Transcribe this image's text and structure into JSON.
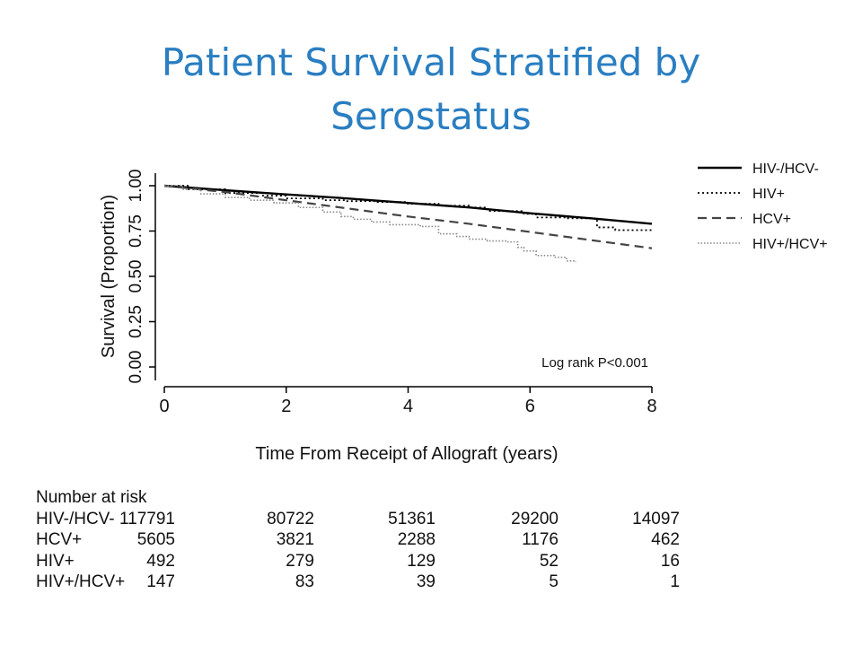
{
  "title": "Patient Survival Stratified by Serostatus",
  "chart_data": {
    "type": "line",
    "xlabel": "Time From Receipt of Allograft (years)",
    "ylabel": "Survival (Proportion)",
    "xlim": [
      0,
      8
    ],
    "ylim": [
      0,
      1
    ],
    "x_ticks": [
      "0",
      "2",
      "4",
      "6",
      "8"
    ],
    "y_ticks": [
      "0.00",
      "0.25",
      "0.50",
      "0.75",
      "1.00"
    ],
    "annotation": "Log rank P<0.001",
    "legend_position": "right",
    "series": [
      {
        "name": "HIV-/HCV-",
        "style": "solid",
        "color": "#000000",
        "x": [
          0,
          1,
          2,
          3,
          4,
          5,
          6,
          7,
          8
        ],
        "y": [
          1.0,
          0.975,
          0.952,
          0.93,
          0.905,
          0.88,
          0.848,
          0.82,
          0.79
        ]
      },
      {
        "name": "HIV+",
        "style": "dotted",
        "color": "#000000",
        "x": [
          0,
          0.4,
          1,
          1.6,
          2,
          2.6,
          3,
          3.5,
          4,
          4.5,
          5,
          5.3,
          5.9,
          6.1,
          6.6,
          7.0,
          7.1,
          7.4,
          8.0
        ],
        "y": [
          1.0,
          0.98,
          0.96,
          0.945,
          0.93,
          0.92,
          0.915,
          0.91,
          0.9,
          0.89,
          0.88,
          0.86,
          0.845,
          0.825,
          0.82,
          0.82,
          0.77,
          0.755,
          0.755
        ]
      },
      {
        "name": "HCV+",
        "style": "dashed",
        "color": "#333333",
        "x": [
          0,
          1,
          2,
          3,
          4,
          5,
          6,
          7,
          8
        ],
        "y": [
          1.0,
          0.965,
          0.92,
          0.875,
          0.83,
          0.79,
          0.745,
          0.7,
          0.655
        ]
      },
      {
        "name": "HIV+/HCV+",
        "style": "dotted-gray",
        "color": "#888888",
        "x": [
          0,
          0.3,
          0.6,
          1.0,
          1.4,
          1.8,
          2.2,
          2.6,
          2.9,
          3.1,
          3.4,
          3.7,
          4.2,
          4.5,
          4.8,
          5.0,
          5.3,
          5.6,
          5.8,
          5.9,
          6.1,
          6.4,
          6.6,
          6.75
        ],
        "y": [
          1.0,
          0.98,
          0.955,
          0.935,
          0.92,
          0.905,
          0.88,
          0.855,
          0.83,
          0.815,
          0.8,
          0.785,
          0.775,
          0.735,
          0.72,
          0.705,
          0.695,
          0.69,
          0.66,
          0.64,
          0.615,
          0.605,
          0.585,
          0.58
        ]
      }
    ]
  },
  "risk_table": {
    "title": "Number at risk",
    "rows": [
      {
        "label": "HIV-/HCV-",
        "values": [
          "117791",
          "80722",
          "51361",
          "29200",
          "14097"
        ]
      },
      {
        "label": "HCV+",
        "values": [
          "5605",
          "3821",
          "2288",
          "1176",
          "462"
        ]
      },
      {
        "label": "HIV+",
        "values": [
          "492",
          "279",
          "129",
          "52",
          "16"
        ]
      },
      {
        "label": "HIV+/HCV+",
        "values": [
          "147",
          "83",
          "39",
          "5",
          "1"
        ]
      }
    ]
  }
}
